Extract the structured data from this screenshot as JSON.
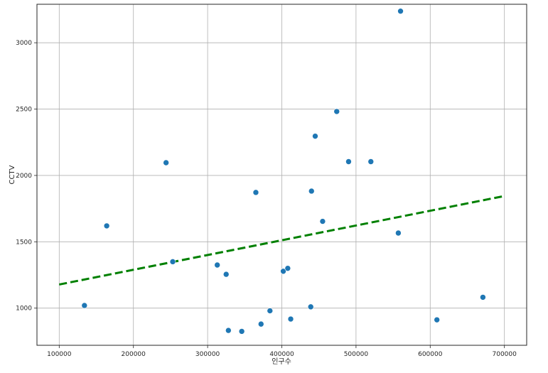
{
  "chart_data": {
    "type": "scatter",
    "title": "",
    "xlabel": "인구수",
    "ylabel": "CCTV",
    "xlim": [
      70000,
      730000
    ],
    "ylim": [
      720,
      3290
    ],
    "xticks": [
      100000,
      200000,
      300000,
      400000,
      500000,
      600000,
      700000
    ],
    "yticks": [
      1000,
      1500,
      2000,
      2500,
      3000
    ],
    "grid": true,
    "points": [
      {
        "x": 134000,
        "y": 1020
      },
      {
        "x": 164000,
        "y": 1620
      },
      {
        "x": 244000,
        "y": 2096
      },
      {
        "x": 253000,
        "y": 1350
      },
      {
        "x": 313000,
        "y": 1325
      },
      {
        "x": 325000,
        "y": 1255
      },
      {
        "x": 328000,
        "y": 832
      },
      {
        "x": 346000,
        "y": 825
      },
      {
        "x": 365000,
        "y": 1872
      },
      {
        "x": 372000,
        "y": 880
      },
      {
        "x": 384000,
        "y": 980
      },
      {
        "x": 402000,
        "y": 1278
      },
      {
        "x": 408000,
        "y": 1300
      },
      {
        "x": 412000,
        "y": 918
      },
      {
        "x": 439000,
        "y": 1010
      },
      {
        "x": 440000,
        "y": 1882
      },
      {
        "x": 445000,
        "y": 2296
      },
      {
        "x": 455000,
        "y": 1654
      },
      {
        "x": 474000,
        "y": 2482
      },
      {
        "x": 490000,
        "y": 2104
      },
      {
        "x": 520000,
        "y": 2104
      },
      {
        "x": 557000,
        "y": 1566
      },
      {
        "x": 560000,
        "y": 3238
      },
      {
        "x": 609000,
        "y": 912
      },
      {
        "x": 671000,
        "y": 1082
      }
    ],
    "point_color": "#1f77b4",
    "trend_line": {
      "x": [
        100000,
        700000
      ],
      "y": [
        1178,
        1845
      ],
      "color": "#008000",
      "style": "dashed"
    }
  }
}
